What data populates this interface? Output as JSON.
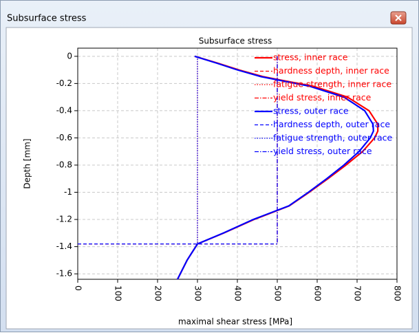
{
  "window": {
    "title": "Subsurface stress"
  },
  "chart_data": {
    "type": "line",
    "title": "Subsurface stress",
    "x_label": "maximal shear stress [MPa]",
    "y_label": "Depth [mm]",
    "xlim": [
      0,
      800
    ],
    "ylim": [
      -1.64,
      0.06
    ],
    "xticks": [
      0,
      100,
      200,
      300,
      400,
      500,
      600,
      700,
      800
    ],
    "yticks": [
      0,
      -0.2,
      -0.4,
      -0.6,
      -0.8,
      -1,
      -1.2,
      -1.4,
      -1.6
    ],
    "grid": true,
    "legend": "upper right",
    "series": [
      {
        "name": "stress, inner race",
        "color": "#ff0000",
        "style": "solid",
        "x": [
          293,
          350,
          404,
          465,
          518,
          590,
          676,
          730,
          752,
          752,
          744,
          714,
          672,
          627,
          580,
          530,
          442,
          366,
          300,
          274,
          250
        ],
        "y": [
          0,
          -0.05,
          -0.1,
          -0.15,
          -0.18,
          -0.22,
          -0.3,
          -0.4,
          -0.5,
          -0.55,
          -0.6,
          -0.7,
          -0.8,
          -0.9,
          -1.0,
          -1.1,
          -1.2,
          -1.3,
          -1.38,
          -1.5,
          -1.64
        ]
      },
      {
        "name": "hardness depth, inner race",
        "color": "#ff0000",
        "style": "dashed",
        "x": [
          0,
          500
        ],
        "y": [
          -1.38,
          -1.38
        ]
      },
      {
        "name": "fatigue strength, inner race",
        "color": "#ff0000",
        "style": "dotted",
        "x": [
          300,
          300
        ],
        "y": [
          0,
          -1.38
        ]
      },
      {
        "name": "yield stress, inner race",
        "color": "#ff0000",
        "style": "dashdot",
        "x": [
          500,
          500
        ],
        "y": [
          0,
          -1.38
        ]
      },
      {
        "name": "stress, outer race",
        "color": "#0000ff",
        "style": "solid",
        "x": [
          293,
          348,
          400,
          460,
          512,
          581,
          667,
          719,
          740,
          741,
          733,
          705,
          667,
          624,
          578,
          529,
          440,
          365,
          300,
          274,
          250
        ],
        "y": [
          0,
          -0.05,
          -0.1,
          -0.15,
          -0.18,
          -0.22,
          -0.3,
          -0.4,
          -0.5,
          -0.55,
          -0.6,
          -0.7,
          -0.8,
          -0.9,
          -1.0,
          -1.1,
          -1.2,
          -1.3,
          -1.38,
          -1.5,
          -1.64
        ]
      },
      {
        "name": "hardness depth, outer race",
        "color": "#0000ff",
        "style": "dashed",
        "x": [
          0,
          500
        ],
        "y": [
          -1.38,
          -1.38
        ]
      },
      {
        "name": "fatigue strength, outer race",
        "color": "#0000ff",
        "style": "dotted",
        "x": [
          300,
          300
        ],
        "y": [
          0,
          -1.38
        ]
      },
      {
        "name": "yield stress, outer race",
        "color": "#0000ff",
        "style": "dashdot",
        "x": [
          500,
          500
        ],
        "y": [
          0,
          -1.38
        ]
      }
    ]
  }
}
